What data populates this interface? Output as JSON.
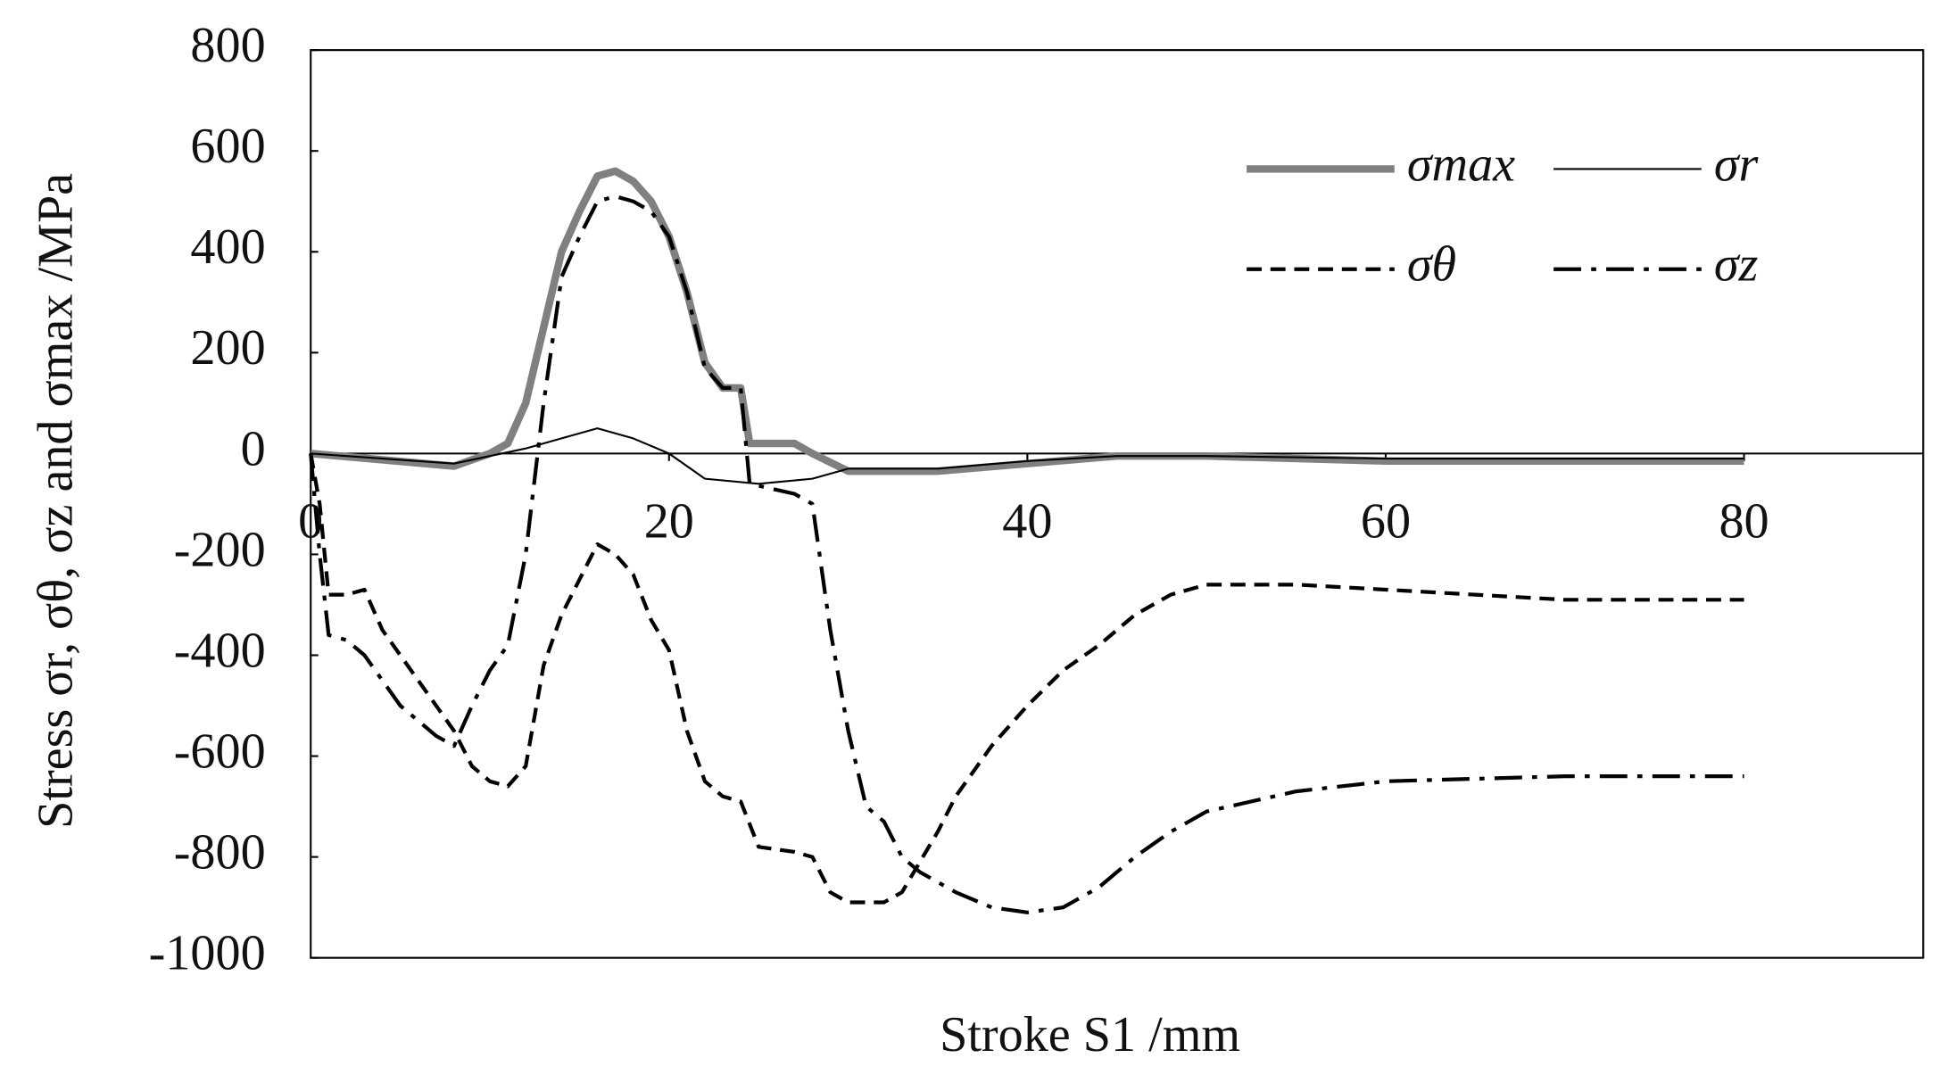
{
  "chart_data": {
    "type": "line",
    "x_label": "Stroke S1 /mm",
    "y_label": "Stress σr, σθ, σz and σmax /MPa",
    "xlim": [
      0,
      90
    ],
    "ylim": [
      -1000,
      800
    ],
    "xticks": [
      0,
      20,
      40,
      60,
      80
    ],
    "yticks": [
      -1000,
      -800,
      -600,
      -400,
      -200,
      0,
      200,
      400,
      600,
      800
    ],
    "legend": "upper right",
    "series": [
      {
        "name": "σmax",
        "color": "#808080",
        "style": "solid",
        "width": 6,
        "x": [
          0,
          8,
          10,
          11,
          12,
          13,
          14,
          15,
          16,
          17,
          18,
          19,
          20,
          21,
          22,
          23,
          24,
          24.5,
          27,
          28,
          30,
          35,
          40,
          45,
          50,
          60,
          70,
          80
        ],
        "values": [
          0,
          -25,
          0,
          20,
          100,
          250,
          400,
          480,
          550,
          560,
          540,
          500,
          430,
          320,
          180,
          130,
          130,
          20,
          20,
          0,
          -35,
          -35,
          -20,
          -5,
          -5,
          -15,
          -15,
          -15
        ]
      },
      {
        "name": "σr",
        "color": "#000000",
        "style": "solid",
        "width": 1.5,
        "x": [
          0,
          8,
          10,
          12,
          14,
          16,
          18,
          20,
          22,
          25,
          28,
          30,
          35,
          40,
          45,
          50,
          60,
          80
        ],
        "values": [
          0,
          -20,
          -5,
          10,
          30,
          50,
          30,
          0,
          -50,
          -60,
          -50,
          -30,
          -30,
          -15,
          -5,
          -5,
          -10,
          -10
        ]
      },
      {
        "name": "σθ",
        "color": "#000000",
        "style": "dashed",
        "width": 3,
        "x": [
          0,
          0.5,
          1,
          2,
          3,
          4,
          6,
          8,
          9,
          10,
          11,
          12,
          13,
          14,
          15,
          16,
          17,
          18,
          19,
          20,
          21,
          22,
          23,
          24,
          25,
          27,
          28,
          29,
          30,
          32,
          33,
          34,
          35,
          36,
          38,
          40,
          42,
          44,
          46,
          48,
          50,
          55,
          60,
          70,
          80
        ],
        "values": [
          0,
          -100,
          -280,
          -280,
          -270,
          -350,
          -450,
          -550,
          -620,
          -650,
          -660,
          -620,
          -420,
          -320,
          -250,
          -180,
          -200,
          -240,
          -330,
          -390,
          -550,
          -650,
          -680,
          -690,
          -780,
          -790,
          -800,
          -870,
          -890,
          -890,
          -870,
          -810,
          -750,
          -680,
          -580,
          -500,
          -430,
          -380,
          -320,
          -280,
          -260,
          -260,
          -270,
          -290,
          -290
        ]
      },
      {
        "name": "σz",
        "color": "#000000",
        "style": "dashdot",
        "width": 3,
        "x": [
          0,
          0.5,
          1,
          2,
          3,
          5,
          7,
          8,
          9,
          10,
          11,
          12,
          13,
          14,
          15,
          16,
          17,
          18,
          19,
          20,
          21,
          22,
          23,
          24,
          24.5,
          27,
          28,
          29,
          30,
          31,
          32,
          33,
          34,
          35,
          36,
          38,
          40,
          42,
          44,
          46,
          48,
          50,
          55,
          60,
          70,
          80
        ],
        "values": [
          0,
          -200,
          -360,
          -370,
          -400,
          -500,
          -560,
          -580,
          -500,
          -430,
          -380,
          -200,
          100,
          350,
          430,
          500,
          510,
          500,
          480,
          430,
          320,
          170,
          130,
          130,
          -60,
          -80,
          -100,
          -350,
          -550,
          -700,
          -730,
          -800,
          -830,
          -850,
          -870,
          -900,
          -910,
          -900,
          -860,
          -800,
          -750,
          -710,
          -670,
          -650,
          -640,
          -640
        ]
      }
    ]
  }
}
